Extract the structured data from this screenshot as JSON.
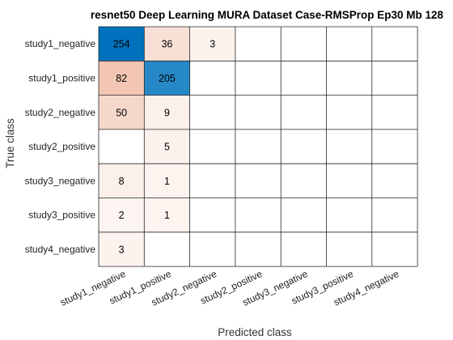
{
  "chart_data": {
    "type": "heatmap",
    "title": "resnet50 Deep Learning MURA Dataset Case-RMSProp Ep30 Mb 128",
    "xlabel": "Predicted class",
    "ylabel": "True class",
    "classes": [
      "study1_negative",
      "study1_positive",
      "study2_negative",
      "study2_positive",
      "study3_negative",
      "study3_positive",
      "study4_negative"
    ],
    "matrix": [
      [
        254,
        36,
        3,
        0,
        0,
        0,
        0
      ],
      [
        82,
        205,
        0,
        0,
        0,
        0,
        0
      ],
      [
        50,
        9,
        0,
        0,
        0,
        0,
        0
      ],
      [
        0,
        5,
        0,
        0,
        0,
        0,
        0
      ],
      [
        8,
        1,
        0,
        0,
        0,
        0,
        0
      ],
      [
        2,
        1,
        0,
        0,
        0,
        0,
        0
      ],
      [
        3,
        0,
        0,
        0,
        0,
        0,
        0
      ]
    ],
    "colors": {
      "correct": "#0072bd",
      "incorrect": "#d95319",
      "grid": "#262626"
    }
  }
}
